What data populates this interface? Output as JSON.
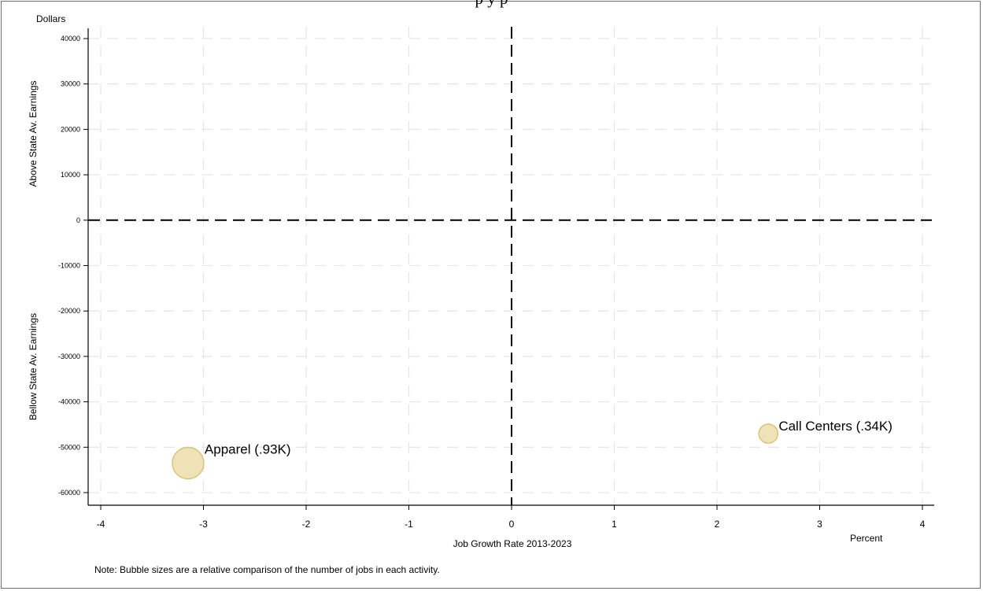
{
  "header": {
    "title_fragment": "p                                                                 y    p"
  },
  "chart_data": {
    "type": "scatter",
    "x_unit_label": "Percent",
    "y_unit_label": "Dollars",
    "xlabel": "Job Growth Rate 2013-2023",
    "ylabel_upper": "Above State Av. Earnings",
    "ylabel_lower": "Bellow State  Av. Earnings",
    "xlim": [
      -4,
      4
    ],
    "ylim": [
      -60000,
      40000
    ],
    "x_ticks": [
      -4,
      -3,
      -2,
      -1,
      0,
      1,
      2,
      3,
      4
    ],
    "y_ticks": [
      40000,
      30000,
      20000,
      10000,
      0,
      -10000,
      -20000,
      -30000,
      -40000,
      -50000,
      -60000
    ],
    "grid": true,
    "reference_lines": {
      "x": 0,
      "y": 0
    },
    "bubble_color": "#ecdfae",
    "bubble_edge": "#d8c47a",
    "points": [
      {
        "label": "Apparel (.93K)",
        "x": -3.15,
        "y": -53500,
        "jobs_k": 0.93
      },
      {
        "label": "Call Centers (.34K)",
        "x": 2.5,
        "y": -47000,
        "jobs_k": 0.34
      }
    ]
  },
  "note": "Note: Bubble sizes are a relative comparison of the number of jobs in each activity."
}
